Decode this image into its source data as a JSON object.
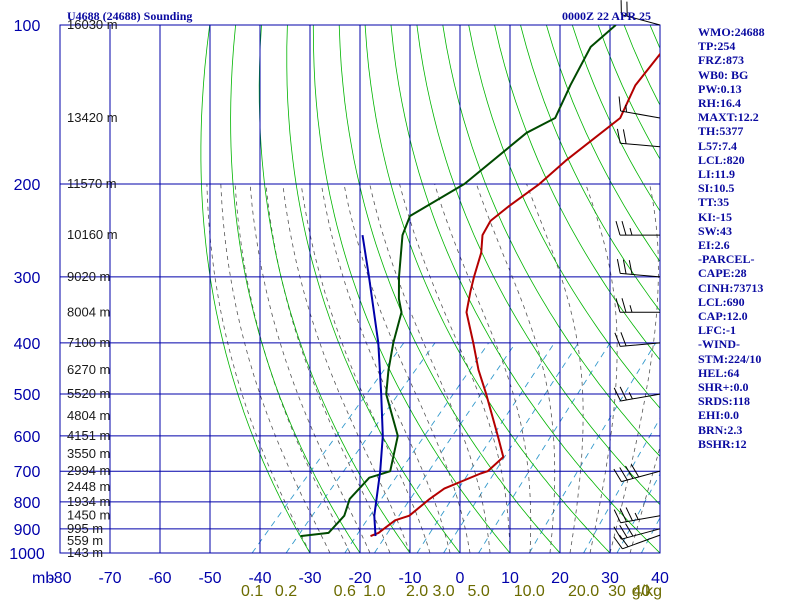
{
  "chart_data": {
    "type": "skew-t",
    "title": "U4688 (24688) Sounding",
    "datetime": "0000Z 22 APR 25",
    "pressure_unit": "mb",
    "mixing_ratio_unit": "g/kg",
    "pressure_levels": [
      100,
      200,
      300,
      400,
      500,
      600,
      700,
      800,
      900,
      1000
    ],
    "temperature_ticks": [
      -80,
      -70,
      -60,
      -50,
      -40,
      -30,
      -20,
      -10,
      0,
      10,
      20,
      30,
      40
    ],
    "temperature_range": [
      -80,
      40
    ],
    "pressure_range": [
      1000,
      100
    ],
    "height_labels": [
      {
        "p": 100,
        "label": "16030 m"
      },
      {
        "p": 150,
        "label": "13420 m"
      },
      {
        "p": 200,
        "label": "11570 m"
      },
      {
        "p": 250,
        "label": "10160 m"
      },
      {
        "p": 300,
        "label": "9020 m"
      },
      {
        "p": 350,
        "label": "8004 m"
      },
      {
        "p": 400,
        "label": "7100 m"
      },
      {
        "p": 450,
        "label": "6270 m"
      },
      {
        "p": 500,
        "label": "5520 m"
      },
      {
        "p": 550,
        "label": "4804 m"
      },
      {
        "p": 600,
        "label": "4151 m"
      },
      {
        "p": 650,
        "label": "3550 m"
      },
      {
        "p": 700,
        "label": "2994 m"
      },
      {
        "p": 750,
        "label": "2448 m"
      },
      {
        "p": 800,
        "label": "1934 m"
      },
      {
        "p": 850,
        "label": "1450 m"
      },
      {
        "p": 900,
        "label": "995 m"
      },
      {
        "p": 950,
        "label": "559 m"
      },
      {
        "p": 1000,
        "label": "143 m"
      }
    ],
    "mixing_ratio_labels": [
      {
        "w": 0.1,
        "label": "0.1"
      },
      {
        "w": 0.2,
        "label": "0.2"
      },
      {
        "w": 0.6,
        "label": "0.6"
      },
      {
        "w": 1.0,
        "label": "1.0"
      },
      {
        "w": 2.0,
        "label": "2.0"
      },
      {
        "w": 3.0,
        "label": "3.0"
      },
      {
        "w": 5.0,
        "label": "5.0"
      },
      {
        "w": 10.0,
        "label": "10.0"
      },
      {
        "w": 20.0,
        "label": "20.0"
      },
      {
        "w": 30.0,
        "label": "30"
      },
      {
        "w": 40.0,
        "label": "40"
      }
    ],
    "series": [
      {
        "role": "temperature",
        "color": "#b40000",
        "points": [
          {
            "p": 929,
            "t": -21.0
          },
          {
            "p": 916,
            "t": -20.0
          },
          {
            "p": 867,
            "t": -19.0
          },
          {
            "p": 850,
            "t": -17.0
          },
          {
            "p": 790,
            "t": -16.0
          },
          {
            "p": 755,
            "t": -15.0
          },
          {
            "p": 707,
            "t": -10.5
          },
          {
            "p": 700,
            "t": -9.5
          },
          {
            "p": 658,
            "t": -9.0
          },
          {
            "p": 600,
            "t": -14.0
          },
          {
            "p": 500,
            "t": -24.0
          },
          {
            "p": 450,
            "t": -30.0
          },
          {
            "p": 400,
            "t": -36.0
          },
          {
            "p": 350,
            "t": -43.0
          },
          {
            "p": 320,
            "t": -46.0
          },
          {
            "p": 300,
            "t": -48.0
          },
          {
            "p": 270,
            "t": -51.0
          },
          {
            "p": 250,
            "t": -54.0
          },
          {
            "p": 235,
            "t": -55.0
          },
          {
            "p": 220,
            "t": -54.0
          },
          {
            "p": 200,
            "t": -52.0
          },
          {
            "p": 180,
            "t": -51.0
          },
          {
            "p": 150,
            "t": -48.0
          },
          {
            "p": 130,
            "t": -51.0
          },
          {
            "p": 110,
            "t": -52.0
          },
          {
            "p": 100,
            "t": -50.0
          }
        ]
      },
      {
        "role": "dewpoint",
        "color": "#004a00",
        "points": [
          {
            "p": 929,
            "t": -35.0
          },
          {
            "p": 916,
            "t": -30.0
          },
          {
            "p": 867,
            "t": -30.0
          },
          {
            "p": 850,
            "t": -30.0
          },
          {
            "p": 790,
            "t": -32.0
          },
          {
            "p": 755,
            "t": -32.0
          },
          {
            "p": 720,
            "t": -32.0
          },
          {
            "p": 700,
            "t": -29.0
          },
          {
            "p": 600,
            "t": -34.0
          },
          {
            "p": 500,
            "t": -44.0
          },
          {
            "p": 450,
            "t": -48.0
          },
          {
            "p": 400,
            "t": -52.0
          },
          {
            "p": 350,
            "t": -56.0
          },
          {
            "p": 330,
            "t": -59.0
          },
          {
            "p": 300,
            "t": -63.0
          },
          {
            "p": 250,
            "t": -70.0
          },
          {
            "p": 230,
            "t": -72.0
          },
          {
            "p": 200,
            "t": -67.0
          },
          {
            "p": 160,
            "t": -64.0
          },
          {
            "p": 150,
            "t": -61.0
          },
          {
            "p": 130,
            "t": -64.0
          },
          {
            "p": 110,
            "t": -67.0
          },
          {
            "p": 100,
            "t": -66.0
          }
        ]
      },
      {
        "role": "parcel",
        "color": "#0000aa",
        "points": [
          {
            "p": 929,
            "t": -20.0
          },
          {
            "p": 850,
            "t": -24.0
          },
          {
            "p": 700,
            "t": -31.0
          },
          {
            "p": 600,
            "t": -37.0
          },
          {
            "p": 500,
            "t": -45.0
          },
          {
            "p": 400,
            "t": -55.0
          },
          {
            "p": 300,
            "t": -69.0
          },
          {
            "p": 250,
            "t": -78.0
          }
        ]
      }
    ],
    "wind_profile": [
      {
        "p": 925,
        "dir": 250,
        "spd": 20
      },
      {
        "p": 900,
        "dir": 255,
        "spd": 30
      },
      {
        "p": 850,
        "dir": 260,
        "spd": 35
      },
      {
        "p": 700,
        "dir": 255,
        "spd": 40
      },
      {
        "p": 500,
        "dir": 260,
        "spd": 25
      },
      {
        "p": 400,
        "dir": 265,
        "spd": 20
      },
      {
        "p": 350,
        "dir": 270,
        "spd": 25
      },
      {
        "p": 300,
        "dir": 275,
        "spd": 30
      },
      {
        "p": 250,
        "dir": 270,
        "spd": 25
      },
      {
        "p": 170,
        "dir": 275,
        "spd": 20
      },
      {
        "p": 150,
        "dir": 280,
        "spd": 15
      },
      {
        "p": 100,
        "dir": 285,
        "spd": 20
      }
    ],
    "indices": [
      "WMO:24688",
      "TP:254",
      "FRZ:873",
      "WB0: BG",
      "PW:0.13",
      "RH:16.4",
      "MAXT:12.2",
      "TH:5377",
      "L57:7.4",
      "LCL:820",
      "LI:11.9",
      "SI:10.5",
      "TT:35",
      "KI:-15",
      "SW:43",
      "EI:2.6",
      "-PARCEL-",
      "CAPE:28",
      "CINH:73713",
      "LCL:690",
      "CAP:12.0",
      "LFC:-1",
      "-WIND-",
      "STM:224/10",
      "HEL:64",
      "SHR+:0.0",
      "SRDS:118",
      "EHI:0.0",
      "BRN:2.3",
      "BSHR:12"
    ],
    "colors": {
      "grid": "#0000aa",
      "dry_adiabat": "#00b400",
      "moist_adiabat": "#555555",
      "mixing_ratio": "#3399cc",
      "axis_text": "#0000aa",
      "mixing_text": "#6b6b00",
      "index_text": "#0a0aa0"
    }
  }
}
